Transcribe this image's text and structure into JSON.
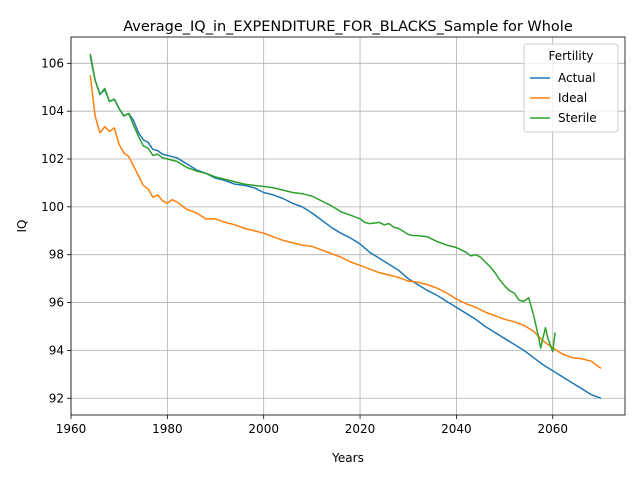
{
  "chart_data": {
    "type": "line",
    "title": "Average_IQ_in_EXPENDITURE_FOR_BLACKS_Sample for Whole",
    "xlabel": "Years",
    "ylabel": "IQ",
    "xlim": [
      1960,
      2075
    ],
    "ylim": [
      91.3,
      107.1
    ],
    "x_ticks": [
      1960,
      1980,
      2000,
      2020,
      2040,
      2060
    ],
    "y_ticks": [
      92,
      94,
      96,
      98,
      100,
      102,
      104,
      106
    ],
    "grid": true,
    "legend": {
      "title": "Fertility",
      "placement": "top-right"
    },
    "series": [
      {
        "name": "Actual",
        "color": "#1f77b4",
        "points": [
          [
            1964,
            106.3
          ],
          [
            1965,
            105.3
          ],
          [
            1966,
            104.7
          ],
          [
            1967,
            104.9
          ],
          [
            1968,
            104.4
          ],
          [
            1969,
            104.5
          ],
          [
            1970,
            104.1
          ],
          [
            1971,
            103.8
          ],
          [
            1972,
            103.9
          ],
          [
            1973,
            103.6
          ],
          [
            1974,
            103.1
          ],
          [
            1975,
            102.8
          ],
          [
            1976,
            102.7
          ],
          [
            1977,
            102.4
          ],
          [
            1978,
            102.35
          ],
          [
            1979,
            102.2
          ],
          [
            1980,
            102.15
          ],
          [
            1982,
            102.05
          ],
          [
            1984,
            101.8
          ],
          [
            1986,
            101.55
          ],
          [
            1988,
            101.4
          ],
          [
            1990,
            101.2
          ],
          [
            1992,
            101.1
          ],
          [
            1994,
            100.95
          ],
          [
            1996,
            100.9
          ],
          [
            1998,
            100.8
          ],
          [
            2000,
            100.6
          ],
          [
            2002,
            100.5
          ],
          [
            2004,
            100.35
          ],
          [
            2006,
            100.15
          ],
          [
            2008,
            100.0
          ],
          [
            2010,
            99.75
          ],
          [
            2012,
            99.45
          ],
          [
            2014,
            99.15
          ],
          [
            2016,
            98.9
          ],
          [
            2018,
            98.7
          ],
          [
            2020,
            98.45
          ],
          [
            2022,
            98.1
          ],
          [
            2024,
            97.85
          ],
          [
            2026,
            97.6
          ],
          [
            2028,
            97.35
          ],
          [
            2030,
            97.0
          ],
          [
            2032,
            96.75
          ],
          [
            2034,
            96.5
          ],
          [
            2036,
            96.3
          ],
          [
            2038,
            96.05
          ],
          [
            2040,
            95.8
          ],
          [
            2042,
            95.55
          ],
          [
            2044,
            95.3
          ],
          [
            2046,
            95.0
          ],
          [
            2048,
            94.75
          ],
          [
            2050,
            94.5
          ],
          [
            2052,
            94.25
          ],
          [
            2054,
            94.0
          ],
          [
            2056,
            93.7
          ],
          [
            2058,
            93.4
          ],
          [
            2060,
            93.15
          ],
          [
            2062,
            92.9
          ],
          [
            2064,
            92.65
          ],
          [
            2066,
            92.4
          ],
          [
            2068,
            92.15
          ],
          [
            2070,
            92.0
          ]
        ]
      },
      {
        "name": "Ideal",
        "color": "#ff7f0e",
        "points": [
          [
            1964,
            105.5
          ],
          [
            1965,
            103.8
          ],
          [
            1966,
            103.1
          ],
          [
            1967,
            103.35
          ],
          [
            1968,
            103.15
          ],
          [
            1969,
            103.3
          ],
          [
            1970,
            102.6
          ],
          [
            1971,
            102.25
          ],
          [
            1972,
            102.1
          ],
          [
            1973,
            101.7
          ],
          [
            1974,
            101.3
          ],
          [
            1975,
            100.9
          ],
          [
            1976,
            100.75
          ],
          [
            1977,
            100.4
          ],
          [
            1978,
            100.5
          ],
          [
            1979,
            100.25
          ],
          [
            1980,
            100.15
          ],
          [
            1981,
            100.3
          ],
          [
            1982,
            100.2
          ],
          [
            1984,
            99.9
          ],
          [
            1986,
            99.75
          ],
          [
            1988,
            99.5
          ],
          [
            1990,
            99.5
          ],
          [
            1992,
            99.35
          ],
          [
            1994,
            99.25
          ],
          [
            1996,
            99.1
          ],
          [
            1998,
            99.0
          ],
          [
            2000,
            98.9
          ],
          [
            2002,
            98.75
          ],
          [
            2004,
            98.6
          ],
          [
            2006,
            98.5
          ],
          [
            2008,
            98.4
          ],
          [
            2010,
            98.35
          ],
          [
            2012,
            98.2
          ],
          [
            2014,
            98.05
          ],
          [
            2016,
            97.9
          ],
          [
            2018,
            97.7
          ],
          [
            2020,
            97.55
          ],
          [
            2022,
            97.4
          ],
          [
            2024,
            97.25
          ],
          [
            2026,
            97.15
          ],
          [
            2028,
            97.05
          ],
          [
            2030,
            96.9
          ],
          [
            2032,
            96.85
          ],
          [
            2034,
            96.75
          ],
          [
            2036,
            96.6
          ],
          [
            2038,
            96.4
          ],
          [
            2040,
            96.15
          ],
          [
            2042,
            95.95
          ],
          [
            2044,
            95.8
          ],
          [
            2046,
            95.6
          ],
          [
            2048,
            95.45
          ],
          [
            2050,
            95.3
          ],
          [
            2052,
            95.2
          ],
          [
            2054,
            95.05
          ],
          [
            2056,
            94.8
          ],
          [
            2058,
            94.4
          ],
          [
            2060,
            94.1
          ],
          [
            2062,
            93.85
          ],
          [
            2064,
            93.7
          ],
          [
            2066,
            93.65
          ],
          [
            2068,
            93.55
          ],
          [
            2070,
            93.25
          ]
        ]
      },
      {
        "name": "Sterile",
        "color": "#2ca02c",
        "points": [
          [
            1964,
            106.4
          ],
          [
            1965,
            105.3
          ],
          [
            1966,
            104.7
          ],
          [
            1967,
            104.95
          ],
          [
            1968,
            104.4
          ],
          [
            1969,
            104.5
          ],
          [
            1970,
            104.1
          ],
          [
            1971,
            103.8
          ],
          [
            1972,
            103.9
          ],
          [
            1973,
            103.4
          ],
          [
            1974,
            102.95
          ],
          [
            1975,
            102.55
          ],
          [
            1976,
            102.45
          ],
          [
            1977,
            102.15
          ],
          [
            1978,
            102.2
          ],
          [
            1979,
            102.05
          ],
          [
            1980,
            102.0
          ],
          [
            1982,
            101.9
          ],
          [
            1984,
            101.65
          ],
          [
            1986,
            101.5
          ],
          [
            1988,
            101.4
          ],
          [
            1990,
            101.25
          ],
          [
            1992,
            101.15
          ],
          [
            1994,
            101.05
          ],
          [
            1996,
            100.95
          ],
          [
            1998,
            100.9
          ],
          [
            2000,
            100.85
          ],
          [
            2002,
            100.8
          ],
          [
            2004,
            100.7
          ],
          [
            2006,
            100.6
          ],
          [
            2008,
            100.55
          ],
          [
            2010,
            100.45
          ],
          [
            2012,
            100.25
          ],
          [
            2014,
            100.05
          ],
          [
            2016,
            99.8
          ],
          [
            2018,
            99.65
          ],
          [
            2020,
            99.5
          ],
          [
            2021,
            99.35
          ],
          [
            2022,
            99.3
          ],
          [
            2024,
            99.35
          ],
          [
            2025,
            99.25
          ],
          [
            2026,
            99.3
          ],
          [
            2027,
            99.15
          ],
          [
            2028,
            99.1
          ],
          [
            2030,
            98.85
          ],
          [
            2031,
            98.8
          ],
          [
            2032,
            98.8
          ],
          [
            2034,
            98.75
          ],
          [
            2036,
            98.55
          ],
          [
            2038,
            98.4
          ],
          [
            2040,
            98.3
          ],
          [
            2041,
            98.2
          ],
          [
            2042,
            98.1
          ],
          [
            2043,
            97.95
          ],
          [
            2044,
            98.0
          ],
          [
            2045,
            97.9
          ],
          [
            2046,
            97.7
          ],
          [
            2047,
            97.5
          ],
          [
            2048,
            97.25
          ],
          [
            2049,
            96.95
          ],
          [
            2050,
            96.7
          ],
          [
            2051,
            96.5
          ],
          [
            2052,
            96.4
          ],
          [
            2053,
            96.1
          ],
          [
            2054,
            96.05
          ],
          [
            2055,
            96.2
          ],
          [
            2056,
            95.5
          ],
          [
            2057,
            94.6
          ],
          [
            2057.5,
            94.1
          ],
          [
            2058,
            94.55
          ],
          [
            2058.5,
            94.95
          ],
          [
            2059,
            94.5
          ],
          [
            2060,
            93.95
          ],
          [
            2060.5,
            94.75
          ]
        ]
      }
    ]
  }
}
